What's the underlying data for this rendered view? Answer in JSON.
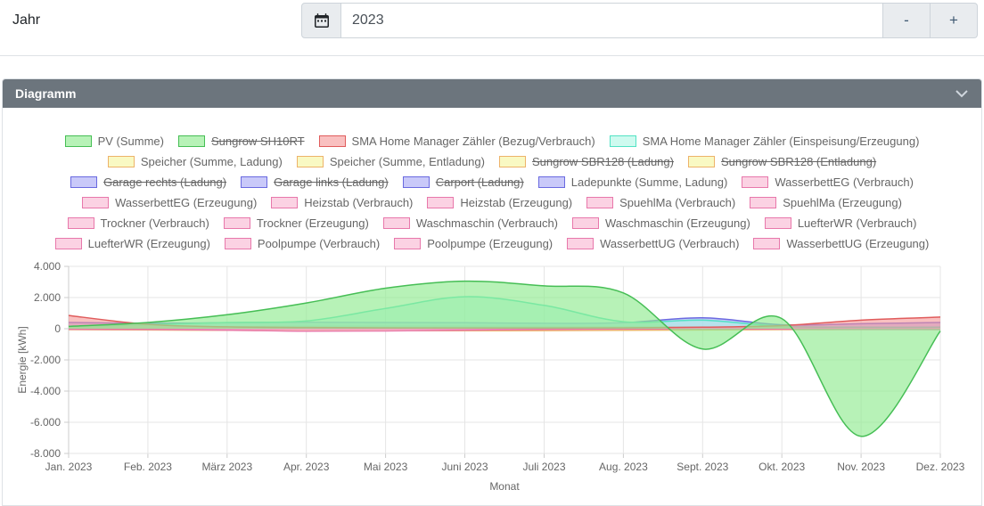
{
  "toolbar": {
    "year_label": "Jahr",
    "year_value": "2023",
    "decrement_label": "-",
    "increment_label": "+"
  },
  "panel": {
    "title": "Diagramm"
  },
  "palette": {
    "green": {
      "border": "#46be55",
      "fill": "rgba(144,235,144,0.65)"
    },
    "red": {
      "border": "#e05c5c",
      "fill": "rgba(245,150,150,0.60)"
    },
    "cyan": {
      "border": "#52e2c4",
      "fill": "rgba(165,245,226,0.55)"
    },
    "yellow": {
      "border": "#edb36a",
      "fill": "rgba(247,247,170,0.70)"
    },
    "purple": {
      "border": "#6a6ae0",
      "fill": "rgba(165,165,245,0.60)"
    },
    "pink": {
      "border": "#e878ab",
      "fill": "rgba(248,180,208,0.60)"
    }
  },
  "legend": {
    "items": [
      {
        "label": "PV (Summe)",
        "color": "green",
        "hidden": false
      },
      {
        "label": "Sungrow SH10RT",
        "color": "green",
        "hidden": true
      },
      {
        "label": "SMA Home Manager Zähler (Bezug/Verbrauch)",
        "color": "red",
        "hidden": false
      },
      {
        "label": "SMA Home Manager Zähler (Einspeisung/Erzeugung)",
        "color": "cyan",
        "hidden": false
      },
      {
        "label": "Speicher (Summe, Ladung)",
        "color": "yellow",
        "hidden": false
      },
      {
        "label": "Speicher (Summe, Entladung)",
        "color": "yellow",
        "hidden": false
      },
      {
        "label": "Sungrow SBR128 (Ladung)",
        "color": "yellow",
        "hidden": true
      },
      {
        "label": "Sungrow SBR128 (Entladung)",
        "color": "yellow",
        "hidden": true
      },
      {
        "label": "Garage rechts (Ladung)",
        "color": "purple",
        "hidden": true
      },
      {
        "label": "Garage links (Ladung)",
        "color": "purple",
        "hidden": true
      },
      {
        "label": "Carport (Ladung)",
        "color": "purple",
        "hidden": true
      },
      {
        "label": "Ladepunkte (Summe, Ladung)",
        "color": "purple",
        "hidden": false
      },
      {
        "label": "WasserbettEG (Verbrauch)",
        "color": "pink",
        "hidden": false
      },
      {
        "label": "WasserbettEG (Erzeugung)",
        "color": "pink",
        "hidden": false
      },
      {
        "label": "Heizstab (Verbrauch)",
        "color": "pink",
        "hidden": false
      },
      {
        "label": "Heizstab (Erzeugung)",
        "color": "pink",
        "hidden": false
      },
      {
        "label": "SpuehlMa (Verbrauch)",
        "color": "pink",
        "hidden": false
      },
      {
        "label": "SpuehlMa (Erzeugung)",
        "color": "pink",
        "hidden": false
      },
      {
        "label": "Trockner (Verbrauch)",
        "color": "pink",
        "hidden": false
      },
      {
        "label": "Trockner (Erzeugung)",
        "color": "pink",
        "hidden": false
      },
      {
        "label": "Waschmaschin (Verbrauch)",
        "color": "pink",
        "hidden": false
      },
      {
        "label": "Waschmaschin (Erzeugung)",
        "color": "pink",
        "hidden": false
      },
      {
        "label": "LuefterWR (Verbrauch)",
        "color": "pink",
        "hidden": false
      },
      {
        "label": "LuefterWR (Erzeugung)",
        "color": "pink",
        "hidden": false
      },
      {
        "label": "Poolpumpe (Verbrauch)",
        "color": "pink",
        "hidden": false
      },
      {
        "label": "Poolpumpe (Erzeugung)",
        "color": "pink",
        "hidden": false
      },
      {
        "label": "WasserbettUG (Verbrauch)",
        "color": "pink",
        "hidden": false
      },
      {
        "label": "WasserbettUG (Erzeugung)",
        "color": "pink",
        "hidden": false
      }
    ]
  },
  "chart_data": {
    "type": "area",
    "x": [
      "Jan. 2023",
      "Feb. 2023",
      "März 2023",
      "Apr. 2023",
      "Mai 2023",
      "Juni 2023",
      "Juli 2023",
      "Aug. 2023",
      "Sept. 2023",
      "Okt. 2023",
      "Nov. 2023",
      "Dez. 2023"
    ],
    "xlabel": "Monat",
    "ylabel": "Energie [kWh]",
    "ylim": [
      -8000,
      4000
    ],
    "yticks": [
      {
        "value": 4000,
        "label": "4.000"
      },
      {
        "value": 2000,
        "label": "2.000"
      },
      {
        "value": 0,
        "label": "0"
      },
      {
        "value": -2000,
        "label": "-2.000"
      },
      {
        "value": -4000,
        "label": "-4.000"
      },
      {
        "value": -6000,
        "label": "-6.000"
      },
      {
        "value": -8000,
        "label": "-8.000"
      }
    ],
    "grid": true,
    "legend_position": "top",
    "series": [
      {
        "name": "Speicher (Summe, Ladung)",
        "color": "yellow",
        "values": [
          80,
          100,
          130,
          150,
          160,
          160,
          150,
          130,
          100,
          80,
          60,
          50
        ]
      },
      {
        "name": "Speicher (Summe, Entladung)",
        "color": "yellow",
        "values": [
          -60,
          -80,
          -100,
          -120,
          -130,
          -130,
          -120,
          -100,
          -80,
          -60,
          -50,
          -40
        ]
      },
      {
        "name": "Heizstab (Verbrauch)",
        "color": "pink",
        "values": [
          -25,
          -15,
          -10,
          -10,
          -10,
          -10,
          -10,
          -10,
          -15,
          -25,
          -45,
          -60
        ]
      },
      {
        "name": "WasserbettEG (Verbrauch)",
        "color": "pink",
        "values": [
          -30,
          -40,
          -90,
          -160,
          -140,
          -90,
          -40,
          -20,
          -10,
          -10,
          -20,
          -30
        ]
      },
      {
        "name": "Ladepunkte (Summe, Ladung)",
        "color": "purple",
        "values": [
          400,
          350,
          380,
          420,
          400,
          380,
          350,
          380,
          700,
          250,
          320,
          400
        ]
      },
      {
        "name": "SMA Home Manager Zähler (Einspeisung/Erzeugung)",
        "color": "cyan",
        "values": [
          150,
          250,
          400,
          500,
          1300,
          2050,
          1500,
          450,
          550,
          150,
          100,
          100
        ]
      },
      {
        "name": "SMA Home Manager Zähler (Bezug/Verbrauch)",
        "color": "red",
        "values": [
          850,
          280,
          120,
          80,
          60,
          50,
          50,
          60,
          100,
          200,
          550,
          750
        ]
      },
      {
        "name": "PV (Summe)",
        "color": "green",
        "values": [
          150,
          400,
          900,
          1650,
          2600,
          3050,
          2750,
          2300,
          -1300,
          650,
          -6900,
          -150
        ]
      }
    ]
  }
}
